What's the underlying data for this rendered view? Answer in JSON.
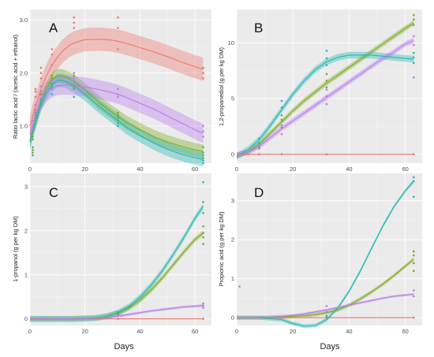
{
  "x_title": "Days",
  "colors": {
    "red": "#f0776f",
    "olive": "#7caa1f",
    "teal": "#22b8b3",
    "purple": "#b87cf0"
  },
  "chart_data": [
    {
      "type": "line",
      "panel_label": "A",
      "ylabel": "Ratio lactic acid / (acetic acid + ethanol)",
      "xlim": [
        0,
        66
      ],
      "ylim": [
        0.3,
        3.2
      ],
      "xticks": [
        0,
        20,
        40,
        60
      ],
      "yticks": [
        1.0,
        2.0,
        3.0
      ],
      "ytick_labels": [
        "1.0",
        "2.0",
        "3.0"
      ],
      "x": [
        0,
        2,
        4,
        6,
        8,
        10,
        12,
        14,
        16,
        20,
        25,
        30,
        32,
        35,
        40,
        45,
        50,
        55,
        60,
        63
      ],
      "series": [
        {
          "color_key": "red",
          "values": [
            1.0,
            1.38,
            1.7,
            1.95,
            2.15,
            2.3,
            2.42,
            2.51,
            2.57,
            2.63,
            2.64,
            2.62,
            2.6,
            2.56,
            2.48,
            2.4,
            2.31,
            2.21,
            2.12,
            2.07
          ],
          "band": 0.22
        },
        {
          "color_key": "olive",
          "values": [
            0.72,
            1.1,
            1.45,
            1.7,
            1.88,
            1.95,
            1.94,
            1.9,
            1.84,
            1.68,
            1.45,
            1.25,
            1.18,
            1.07,
            0.93,
            0.8,
            0.7,
            0.62,
            0.55,
            0.52
          ],
          "band": 0.13
        },
        {
          "color_key": "teal",
          "values": [
            0.7,
            1.05,
            1.4,
            1.62,
            1.78,
            1.86,
            1.86,
            1.82,
            1.76,
            1.6,
            1.38,
            1.18,
            1.1,
            0.98,
            0.82,
            0.68,
            0.56,
            0.47,
            0.4,
            0.37
          ],
          "band": 0.13
        },
        {
          "color_key": "purple",
          "values": [
            0.85,
            1.2,
            1.48,
            1.64,
            1.72,
            1.76,
            1.77,
            1.77,
            1.76,
            1.74,
            1.69,
            1.63,
            1.6,
            1.54,
            1.43,
            1.32,
            1.19,
            1.06,
            0.93,
            0.86
          ],
          "band": 0.18
        }
      ],
      "points": [
        {
          "color_key": "red",
          "x": [
            2,
            2,
            2,
            4,
            4,
            4,
            8,
            8,
            8,
            16,
            16,
            16,
            32,
            32,
            32,
            63,
            63,
            63
          ],
          "y": [
            1.55,
            1.7,
            1.65,
            2.0,
            2.1,
            1.9,
            2.15,
            2.35,
            2.45,
            2.85,
            3.05,
            2.95,
            2.85,
            3.05,
            2.45,
            2.1,
            2.0,
            1.9
          ]
        },
        {
          "color_key": "olive",
          "x": [
            1,
            1,
            1,
            2,
            2,
            4,
            4,
            8,
            8,
            8,
            16,
            16,
            16,
            32,
            32,
            32,
            63,
            63,
            63
          ],
          "y": [
            0.5,
            0.55,
            0.8,
            1.2,
            1.3,
            1.45,
            1.6,
            1.8,
            1.9,
            1.95,
            1.75,
            1.95,
            2.0,
            1.2,
            1.1,
            1.25,
            0.4,
            0.5,
            0.6
          ]
        },
        {
          "color_key": "teal",
          "x": [
            1,
            1,
            1,
            2,
            2,
            4,
            4,
            8,
            8,
            8,
            16,
            16,
            16,
            32,
            32,
            32,
            63,
            63,
            63
          ],
          "y": [
            0.45,
            0.6,
            0.75,
            1.15,
            1.25,
            1.4,
            1.5,
            1.6,
            1.75,
            1.7,
            1.55,
            1.7,
            1.8,
            1.0,
            1.05,
            1.15,
            0.3,
            0.35,
            0.45
          ]
        },
        {
          "color_key": "purple",
          "x": [
            1,
            1,
            2,
            2,
            4,
            4,
            8,
            8,
            16,
            16,
            16,
            32,
            32,
            32,
            63,
            63,
            63
          ],
          "y": [
            0.95,
            1.1,
            1.3,
            1.4,
            1.65,
            1.75,
            1.7,
            1.85,
            1.8,
            2.0,
            1.9,
            1.55,
            1.6,
            1.7,
            0.8,
            0.9,
            1.0
          ]
        }
      ]
    },
    {
      "type": "line",
      "panel_label": "B",
      "ylabel": "1,2-propanediol (g per kg DM)",
      "xlim": [
        0,
        66
      ],
      "ylim": [
        -0.8,
        13.0
      ],
      "xticks": [
        0,
        20,
        40,
        60
      ],
      "yticks": [
        0,
        5,
        10
      ],
      "ytick_labels": [
        "0",
        "5",
        "10"
      ],
      "x": [
        0,
        4,
        8,
        12,
        16,
        20,
        24,
        28,
        32,
        36,
        40,
        44,
        48,
        52,
        56,
        60,
        63
      ],
      "series": [
        {
          "color_key": "red",
          "values": [
            0,
            0,
            0,
            0,
            0,
            0,
            0,
            0,
            0,
            0,
            0,
            0,
            0,
            0,
            0,
            0,
            0
          ],
          "band": 0
        },
        {
          "color_key": "olive",
          "values": [
            -0.1,
            0.2,
            0.9,
            1.9,
            2.9,
            3.9,
            4.8,
            5.6,
            6.4,
            7.1,
            7.8,
            8.5,
            9.2,
            9.9,
            10.6,
            11.3,
            11.8
          ],
          "band": 0.25
        },
        {
          "color_key": "teal",
          "values": [
            -0.2,
            0.4,
            1.3,
            2.6,
            4.0,
            5.4,
            6.6,
            7.6,
            8.3,
            8.7,
            8.9,
            8.9,
            8.9,
            8.8,
            8.7,
            8.6,
            8.55
          ],
          "band": 0.3
        },
        {
          "color_key": "purple",
          "values": [
            -0.1,
            0.2,
            0.7,
            1.5,
            2.3,
            3.0,
            3.7,
            4.4,
            5.1,
            5.8,
            6.5,
            7.2,
            7.9,
            8.6,
            9.2,
            9.9,
            10.2
          ],
          "band": 0.25
        }
      ],
      "points": [
        {
          "color_key": "red",
          "x": [
            1,
            4,
            8,
            16,
            32,
            63
          ],
          "y": [
            0,
            0,
            0,
            0,
            0,
            0
          ]
        },
        {
          "color_key": "olive",
          "x": [
            8,
            8,
            16,
            16,
            32,
            32,
            32,
            63,
            63,
            63
          ],
          "y": [
            0.6,
            0.9,
            2.4,
            3.1,
            6.0,
            6.6,
            7.2,
            11.6,
            12.1,
            12.5
          ]
        },
        {
          "color_key": "teal",
          "x": [
            8,
            8,
            16,
            16,
            16,
            32,
            32,
            32,
            63,
            63,
            63
          ],
          "y": [
            1.0,
            1.4,
            3.5,
            4.2,
            4.8,
            8.0,
            8.6,
            9.3,
            8.2,
            8.7,
            9.1
          ]
        },
        {
          "color_key": "purple",
          "x": [
            8,
            8,
            16,
            16,
            32,
            32,
            32,
            63,
            63,
            63
          ],
          "y": [
            0.5,
            0.8,
            1.8,
            2.6,
            4.5,
            5.2,
            5.8,
            6.9,
            9.8,
            10.6
          ]
        }
      ]
    },
    {
      "type": "line",
      "panel_label": "C",
      "ylabel": "1-propanol (g per kg DM)",
      "xlim": [
        0,
        66
      ],
      "ylim": [
        -0.15,
        3.3
      ],
      "xticks": [
        0,
        20,
        40,
        60
      ],
      "yticks": [
        0,
        1,
        2,
        3
      ],
      "ytick_labels": [
        "0",
        "1",
        "2",
        "3"
      ],
      "x": [
        0,
        8,
        16,
        24,
        28,
        32,
        36,
        40,
        44,
        48,
        52,
        56,
        60,
        63
      ],
      "series": [
        {
          "color_key": "red",
          "values": [
            0,
            0,
            0,
            0,
            0,
            0,
            0,
            0,
            0,
            0,
            0,
            0,
            0,
            0
          ],
          "band": 0
        },
        {
          "color_key": "olive",
          "values": [
            0,
            0,
            0,
            0.02,
            0.06,
            0.13,
            0.25,
            0.42,
            0.65,
            0.92,
            1.22,
            1.52,
            1.8,
            1.95
          ],
          "band": 0.06
        },
        {
          "color_key": "teal",
          "values": [
            0,
            0,
            0,
            0.02,
            0.06,
            0.14,
            0.28,
            0.49,
            0.76,
            1.08,
            1.45,
            1.85,
            2.28,
            2.55
          ],
          "band": 0.07
        },
        {
          "color_key": "purple",
          "values": [
            0,
            0,
            0,
            0.01,
            0.03,
            0.06,
            0.1,
            0.14,
            0.18,
            0.21,
            0.24,
            0.27,
            0.29,
            0.3
          ],
          "band": 0.03
        }
      ],
      "points": [
        {
          "color_key": "red",
          "x": [
            1,
            4,
            8,
            16,
            32,
            63
          ],
          "y": [
            0,
            0,
            0,
            0,
            0,
            0
          ]
        },
        {
          "color_key": "olive",
          "x": [
            32,
            32,
            63,
            63,
            63,
            63
          ],
          "y": [
            0.12,
            0.15,
            1.7,
            1.85,
            1.95,
            2.1
          ]
        },
        {
          "color_key": "teal",
          "x": [
            32,
            32,
            63,
            63,
            63
          ],
          "y": [
            0.1,
            0.16,
            2.4,
            2.65,
            3.1
          ]
        },
        {
          "color_key": "purple",
          "x": [
            32,
            63,
            63,
            63
          ],
          "y": [
            0.08,
            0.25,
            0.3,
            0.35
          ]
        }
      ]
    },
    {
      "type": "line",
      "panel_label": "D",
      "ylabel": "Propionic acid (g per kg DM)",
      "xlim": [
        0,
        66
      ],
      "ylim": [
        -0.2,
        3.7
      ],
      "xticks": [
        0,
        20,
        40,
        60
      ],
      "yticks": [
        0,
        1,
        2,
        3
      ],
      "ytick_labels": [
        "0",
        "1",
        "2",
        "3"
      ],
      "x": [
        0,
        8,
        16,
        20,
        24,
        28,
        32,
        36,
        40,
        44,
        48,
        52,
        56,
        60,
        63
      ],
      "series": [
        {
          "color_key": "red",
          "values": [
            0,
            0,
            0,
            0,
            0,
            0,
            0,
            0,
            0,
            0,
            0,
            0,
            0,
            0,
            0
          ],
          "band": 0
        },
        {
          "color_key": "olive",
          "values": [
            0,
            0,
            0.02,
            0.03,
            0.05,
            0.08,
            0.13,
            0.2,
            0.32,
            0.48,
            0.66,
            0.86,
            1.08,
            1.32,
            1.5
          ],
          "band": 0.05
        },
        {
          "color_key": "teal",
          "values": [
            0,
            0,
            -0.05,
            -0.15,
            -0.22,
            -0.2,
            -0.05,
            0.25,
            0.68,
            1.2,
            1.78,
            2.35,
            2.85,
            3.25,
            3.5
          ],
          "band": 0.05
        },
        {
          "color_key": "purple",
          "values": [
            0,
            0,
            0.03,
            0.06,
            0.1,
            0.15,
            0.2,
            0.26,
            0.32,
            0.38,
            0.44,
            0.5,
            0.55,
            0.58,
            0.6
          ],
          "band": 0.03
        }
      ],
      "points": [
        {
          "color_key": "red",
          "x": [
            1,
            4,
            8,
            16,
            32,
            63
          ],
          "y": [
            0,
            0,
            0,
            0,
            0,
            0
          ]
        },
        {
          "color_key": "purple",
          "x": [
            1,
            32,
            32,
            63,
            63
          ],
          "y": [
            0.8,
            0.15,
            0.3,
            0.55,
            0.7
          ]
        },
        {
          "color_key": "olive",
          "x": [
            32,
            63,
            63,
            63,
            63
          ],
          "y": [
            0.05,
            1.2,
            1.4,
            1.6,
            1.7
          ]
        },
        {
          "color_key": "teal",
          "x": [
            32,
            63,
            63,
            63
          ],
          "y": [
            0.02,
            3.1,
            3.5,
            3.6
          ]
        }
      ]
    }
  ]
}
